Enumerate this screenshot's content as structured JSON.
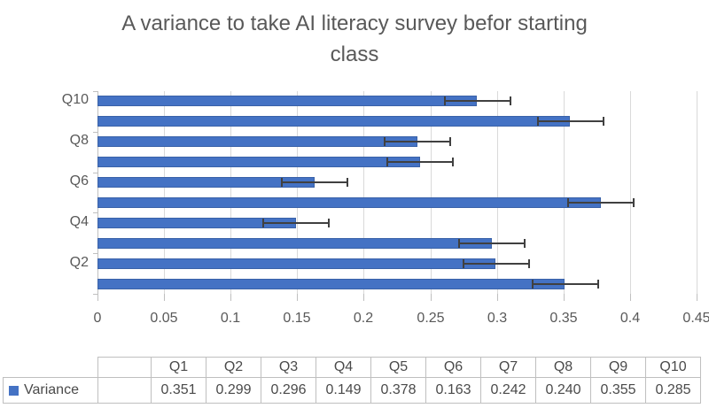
{
  "chart_data": {
    "type": "bar",
    "orientation": "horizontal",
    "title": "A variance to take AI literacy survey befor starting class",
    "title_lines": [
      "A variance to take AI literacy survey befor starting",
      "class"
    ],
    "categories": [
      "Q1",
      "Q2",
      "Q3",
      "Q4",
      "Q5",
      "Q6",
      "Q7",
      "Q8",
      "Q9",
      "Q10"
    ],
    "series": [
      {
        "name": "Variance",
        "values": [
          0.351,
          0.299,
          0.296,
          0.149,
          0.378,
          0.163,
          0.242,
          0.24,
          0.355,
          0.285
        ]
      }
    ],
    "error_bar_plus_minus": 0.025,
    "xlim": [
      0,
      0.45
    ],
    "x_ticks": [
      0,
      0.05,
      0.1,
      0.15,
      0.2,
      0.25,
      0.3,
      0.35,
      0.4,
      0.45
    ],
    "x_tick_labels": [
      "0",
      "0.05",
      "0.1",
      "0.15",
      "0.2",
      "0.25",
      "0.3",
      "0.35",
      "0.4",
      "0.45"
    ],
    "y_axis_labels_shown": [
      "Q2",
      "Q4",
      "Q6",
      "Q8",
      "Q10"
    ],
    "grid": true,
    "legend_position": "bottom-table",
    "colors": {
      "bar": "#4472c4",
      "error_bar": "#404040",
      "gridline": "#d9d9d9",
      "axis": "#bfbfbf",
      "text": "#595959"
    }
  },
  "data_table": {
    "legend_label": "Variance",
    "legend_marker_color": "#4472c4",
    "columns": [
      "Q1",
      "Q2",
      "Q3",
      "Q4",
      "Q5",
      "Q6",
      "Q7",
      "Q8",
      "Q9",
      "Q10"
    ],
    "values": [
      "0.351",
      "0.299",
      "0.296",
      "0.149",
      "0.378",
      "0.163",
      "0.242",
      "0.240",
      "0.355",
      "0.285"
    ],
    "border_color": "#bfbfbf"
  }
}
